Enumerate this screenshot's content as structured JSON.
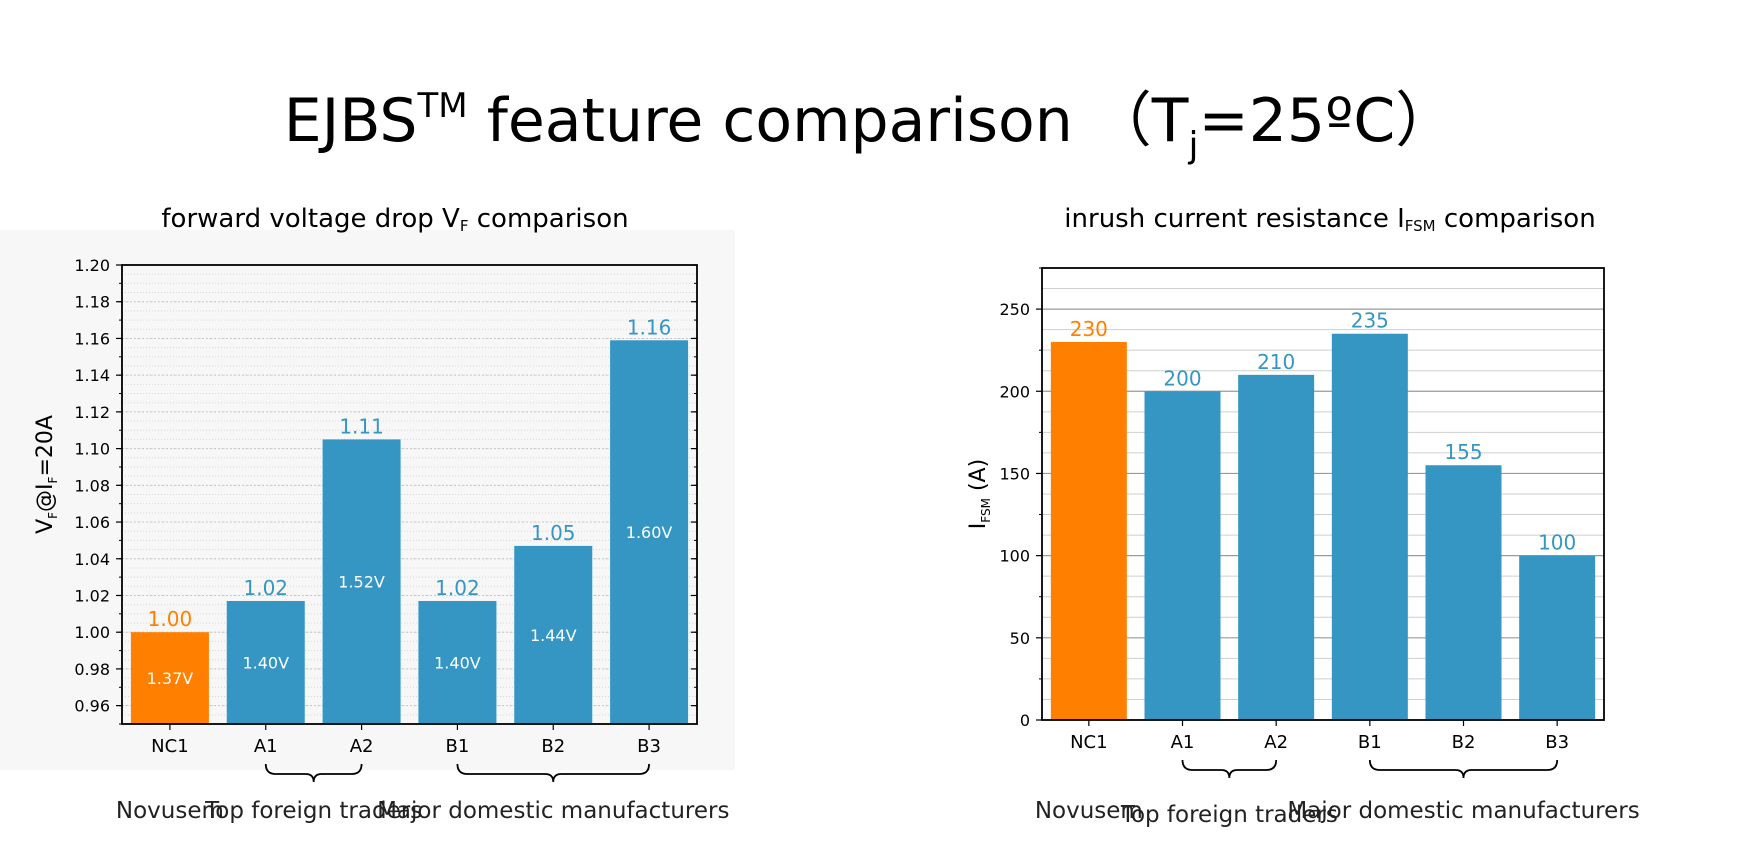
{
  "title": {
    "main": "EJBS",
    "sup": "TM",
    "rest": " feature comparison （T",
    "sub": "j",
    "end": "=25ºC）"
  },
  "left_chart": {
    "title_main": "forward voltage drop V",
    "title_sub": "F",
    "title_end": " comparison"
  },
  "right_chart": {
    "title_main": "inrush current resistance I",
    "title_sub": "FSM",
    "title_end": " comparison"
  },
  "colors": {
    "orange": "#ff7f00",
    "blue": "#3696c3",
    "label_blue": "#3696c3",
    "label_orange": "#ff7f00"
  },
  "chart_data": [
    {
      "type": "bar",
      "title": "forward voltage drop VF comparison",
      "categories": [
        "NC1",
        "A1",
        "A2",
        "B1",
        "B2",
        "B3"
      ],
      "values": [
        1.0,
        1.017,
        1.105,
        1.017,
        1.047,
        1.159
      ],
      "data_labels": [
        "1.00",
        "1.02",
        "1.11",
        "1.02",
        "1.05",
        "1.16"
      ],
      "inner_labels": [
        "1.37V",
        "1.40V",
        "1.52V",
        "1.40V",
        "1.44V",
        "1.60V"
      ],
      "bar_colors": [
        "#ff7f00",
        "#3696c3",
        "#3696c3",
        "#3696c3",
        "#3696c3",
        "#3696c3"
      ],
      "ylabel_parts": [
        "V",
        "F",
        "@I",
        "F",
        "=20A"
      ],
      "ylim": [
        0.95,
        1.2
      ],
      "yticks": [
        "0.96",
        "0.98",
        "1.00",
        "1.02",
        "1.04",
        "1.06",
        "1.08",
        "1.10",
        "1.12",
        "1.14",
        "1.16",
        "1.18",
        "1.20"
      ],
      "grid": true,
      "groups": [
        "Novusem",
        "Top foreign traders",
        "Major domestic manufacturers"
      ]
    },
    {
      "type": "bar",
      "title": "inrush current resistance IFSM comparison",
      "categories": [
        "NC1",
        "A1",
        "A2",
        "B1",
        "B2",
        "B3"
      ],
      "values": [
        230,
        200,
        210,
        235,
        155,
        100
      ],
      "data_labels": [
        "230",
        "200",
        "210",
        "235",
        "155",
        "100"
      ],
      "bar_colors": [
        "#ff7f00",
        "#3696c3",
        "#3696c3",
        "#3696c3",
        "#3696c3",
        "#3696c3"
      ],
      "ylabel_parts": [
        "I",
        "FSM",
        " (A)"
      ],
      "ylim": [
        0,
        275
      ],
      "yticks": [
        "0",
        "50",
        "100",
        "150",
        "200",
        "250"
      ],
      "grid": true,
      "groups": [
        "Novusem",
        "Top foreign traders",
        "Major domestic manufacturers"
      ]
    }
  ]
}
